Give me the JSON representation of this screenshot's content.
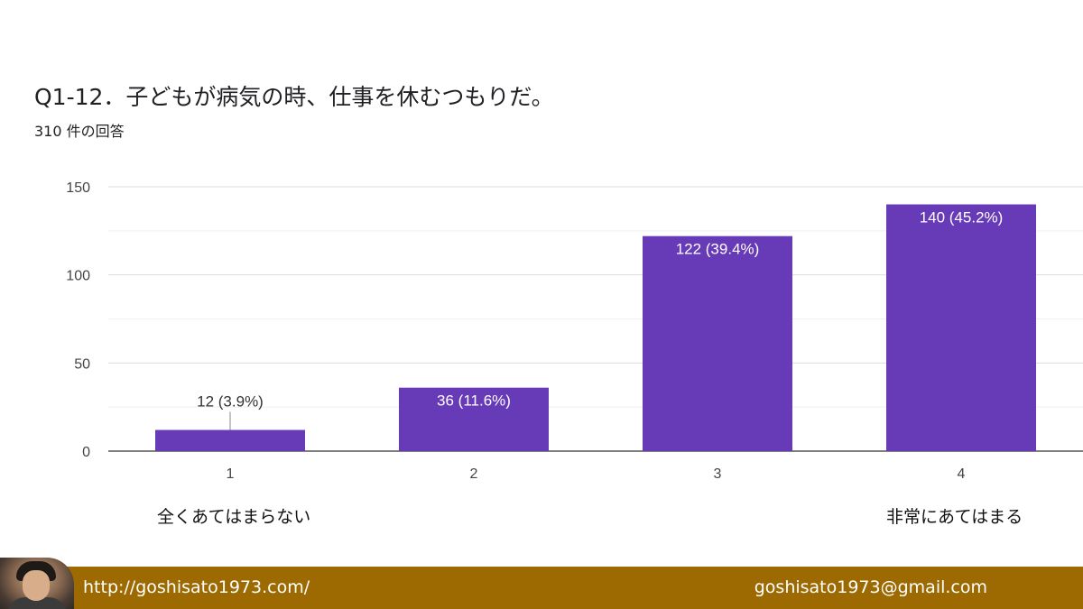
{
  "header": {
    "title": "Q1-12．子どもが病気の時、仕事を休むつもりだ。",
    "response_count": "310 件の回答"
  },
  "chart_data": {
    "type": "bar",
    "categories": [
      "1",
      "2",
      "3",
      "4"
    ],
    "values": [
      12,
      36,
      122,
      140
    ],
    "data_labels": [
      "12 (3.9%)",
      "36 (11.6%)",
      "122 (39.4%)",
      "140 (45.2%)"
    ],
    "y_ticks": [
      "0",
      "50",
      "100",
      "150"
    ],
    "ylim": [
      0,
      150
    ],
    "grid": true,
    "bar_color": "#673ab7",
    "xlabel": "",
    "ylabel": ""
  },
  "scale_labels": {
    "low": "全くあてはまらない",
    "high": "非常にあてはまる"
  },
  "footer": {
    "url": "http://goshisato1973.com/",
    "email": "goshisato1973@gmail.com",
    "background": "#9c6a00"
  }
}
